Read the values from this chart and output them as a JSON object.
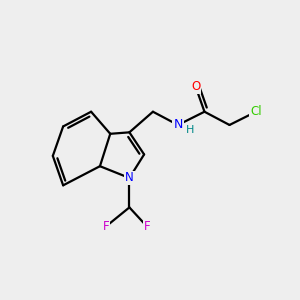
{
  "background_color": "#eeeeee",
  "atom_colors": {
    "C": "#000000",
    "N": "#0000ff",
    "O": "#ff0000",
    "F": "#cc00cc",
    "Cl": "#33cc00",
    "H": "#008888"
  },
  "bond_color": "#000000",
  "bond_width": 1.6,
  "font_size_atom": 8.5
}
